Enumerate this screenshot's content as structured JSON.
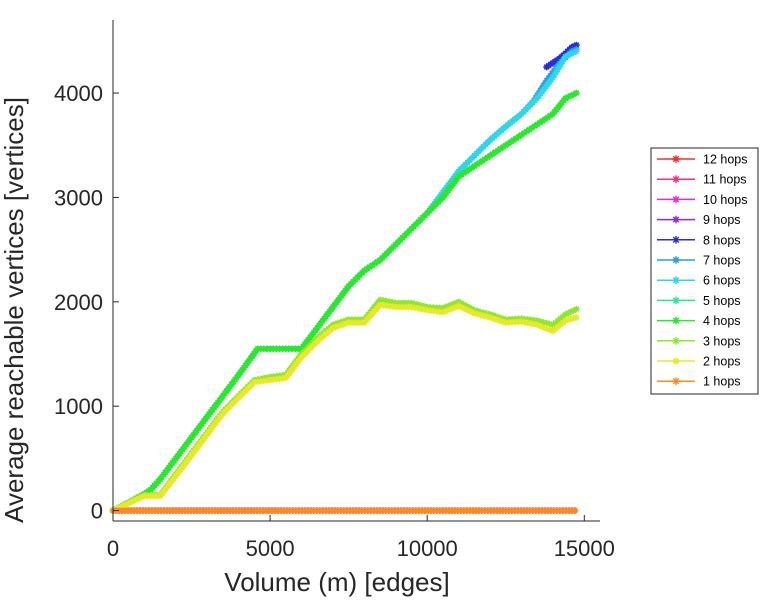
{
  "chart_data": {
    "type": "line",
    "title": "",
    "xlabel": "Volume (m) [edges]",
    "ylabel": "Average reachable vertices [vertices]",
    "xlim": [
      0,
      15500
    ],
    "ylim": [
      -100,
      4700
    ],
    "xticks": [
      0,
      5000,
      10000,
      15000
    ],
    "yticks": [
      0,
      1000,
      2000,
      3000,
      4000
    ],
    "xtick_labels": [
      "0",
      "5000",
      "10000",
      "15000"
    ],
    "ytick_labels": [
      "0",
      "1000",
      "2000",
      "3000",
      "4000"
    ],
    "grid": false,
    "legend_position": "right",
    "series": [
      {
        "name": "12 hops",
        "color": "#ff2a2a",
        "x": [
          0,
          14700
        ],
        "y": [
          0,
          0
        ]
      },
      {
        "name": "11 hops",
        "color": "#ff2a8c",
        "x": [
          0,
          14700
        ],
        "y": [
          0,
          0
        ]
      },
      {
        "name": "10 hops",
        "color": "#e02ae8",
        "x": [
          0,
          14700
        ],
        "y": [
          0,
          0
        ]
      },
      {
        "name": "9 hops",
        "color": "#8a2ae8",
        "x": [
          13800,
          14000,
          14200,
          14400,
          14600,
          14750
        ],
        "y": [
          4250,
          4290,
          4330,
          4380,
          4440,
          4460
        ]
      },
      {
        "name": "8 hops",
        "color": "#2a2ae0",
        "x": [
          13800,
          14000,
          14200,
          14400,
          14600,
          14750
        ],
        "y": [
          4250,
          4290,
          4330,
          4380,
          4440,
          4460
        ]
      },
      {
        "name": "7 hops",
        "color": "#2a9ce8",
        "x": [
          11000,
          11500,
          12000,
          12500,
          13000,
          13400,
          13800,
          14200,
          14600,
          14750
        ],
        "y": [
          3250,
          3400,
          3550,
          3680,
          3800,
          3930,
          4120,
          4280,
          4400,
          4420
        ]
      },
      {
        "name": "6 hops",
        "color": "#2ad8e8",
        "x": [
          0,
          500,
          1000,
          1200,
          1500,
          2000,
          2500,
          3000,
          3500,
          4000,
          4600,
          5000,
          5500,
          6000,
          6500,
          7000,
          7500,
          8000,
          8500,
          9000,
          9500,
          10000,
          10500,
          11000,
          11500,
          12000,
          12500,
          13000,
          13500,
          14000,
          14400,
          14750
        ],
        "y": [
          0,
          80,
          160,
          200,
          300,
          500,
          700,
          900,
          1100,
          1300,
          1550,
          1550,
          1550,
          1550,
          1750,
          1950,
          2150,
          2300,
          2400,
          2550,
          2700,
          2850,
          3050,
          3250,
          3400,
          3550,
          3680,
          3800,
          3950,
          4150,
          4350,
          4400
        ]
      },
      {
        "name": "5 hops",
        "color": "#2ae88c",
        "x": [
          0,
          500,
          1000,
          1200,
          1500,
          2000,
          2500,
          3000,
          3500,
          4000,
          4600,
          5000,
          5500,
          6000,
          6500,
          7000,
          7500,
          8000,
          8500,
          9000,
          9500,
          10000,
          10500,
          11000,
          11500,
          12000,
          12500,
          13000,
          13500,
          14000,
          14400,
          14750
        ],
        "y": [
          0,
          80,
          160,
          200,
          300,
          500,
          700,
          900,
          1100,
          1300,
          1550,
          1550,
          1550,
          1550,
          1750,
          1950,
          2150,
          2300,
          2400,
          2550,
          2700,
          2850,
          3000,
          3200,
          3300,
          3400,
          3500,
          3600,
          3700,
          3800,
          3950,
          4000
        ]
      },
      {
        "name": "4 hops",
        "color": "#2ae82a",
        "x": [
          0,
          500,
          1000,
          1200,
          1500,
          2000,
          2500,
          3000,
          3500,
          4000,
          4600,
          5000,
          5500,
          6000,
          6500,
          7000,
          7500,
          8000,
          8500,
          9000,
          9500,
          10000,
          10500,
          11000,
          11500,
          12000,
          12500,
          13000,
          13500,
          14000,
          14400,
          14750
        ],
        "y": [
          0,
          80,
          160,
          200,
          300,
          500,
          700,
          900,
          1100,
          1300,
          1550,
          1550,
          1550,
          1550,
          1750,
          1950,
          2150,
          2300,
          2400,
          2550,
          2700,
          2850,
          3000,
          3200,
          3300,
          3400,
          3500,
          3600,
          3700,
          3800,
          3950,
          4000
        ]
      },
      {
        "name": "3 hops",
        "color": "#8ce82a",
        "x": [
          0,
          500,
          1000,
          1500,
          2000,
          2500,
          3000,
          3500,
          4000,
          4500,
          5000,
          5500,
          6000,
          6500,
          7000,
          7500,
          8000,
          8500,
          9000,
          9500,
          10000,
          10500,
          11000,
          11500,
          12000,
          12500,
          13000,
          13500,
          14000,
          14400,
          14750
        ],
        "y": [
          0,
          80,
          150,
          150,
          350,
          550,
          750,
          950,
          1100,
          1250,
          1280,
          1300,
          1500,
          1650,
          1780,
          1830,
          1830,
          2020,
          1990,
          1990,
          1950,
          1940,
          2000,
          1920,
          1880,
          1830,
          1840,
          1820,
          1780,
          1880,
          1930
        ]
      },
      {
        "name": "2 hops",
        "color": "#e8e82a",
        "x": [
          0,
          500,
          1000,
          1500,
          2000,
          2500,
          3000,
          3500,
          4000,
          4500,
          5000,
          5500,
          6000,
          6500,
          7000,
          7500,
          8000,
          8500,
          9000,
          9500,
          10000,
          10500,
          11000,
          11500,
          12000,
          12500,
          13000,
          13500,
          14000,
          14400,
          14750
        ],
        "y": [
          0,
          70,
          140,
          140,
          330,
          530,
          730,
          930,
          1080,
          1230,
          1250,
          1270,
          1470,
          1620,
          1750,
          1800,
          1800,
          1970,
          1950,
          1950,
          1920,
          1900,
          1960,
          1890,
          1850,
          1800,
          1810,
          1780,
          1720,
          1820,
          1850
        ]
      },
      {
        "name": "1 hops",
        "color": "#ff8c1a",
        "x": [
          0,
          14700
        ],
        "y": [
          0,
          0
        ]
      }
    ]
  }
}
